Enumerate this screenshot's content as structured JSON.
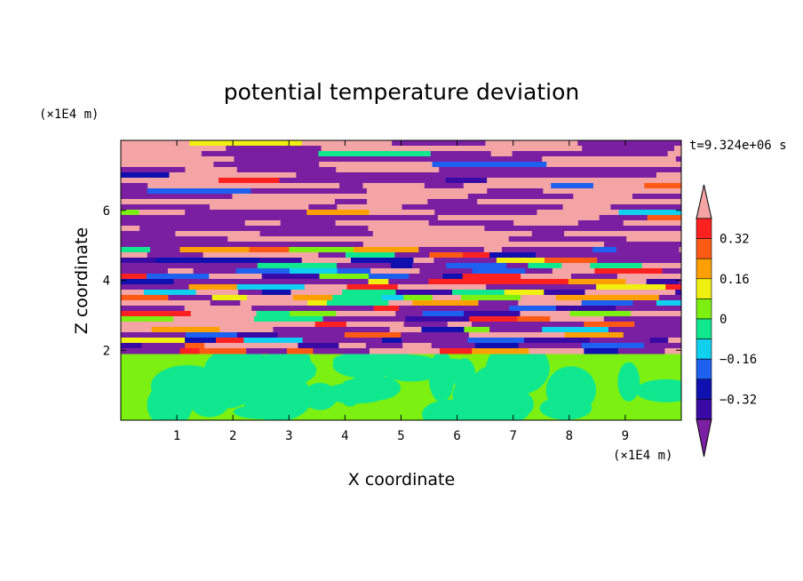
{
  "chart_data": {
    "type": "heatmap",
    "title": "potential temperature deviation",
    "xlabel": "X coordinate",
    "ylabel": "Z coordinate",
    "x_unit": "(×1E4 m)",
    "y_unit": "(×1E4 m)",
    "time_label": "t=9.324e+06 s",
    "xlim": [
      0,
      10
    ],
    "ylim": [
      0,
      8
    ],
    "x_ticks": [
      1,
      2,
      3,
      4,
      5,
      6,
      7,
      8,
      9
    ],
    "y_ticks": [
      2,
      4,
      6
    ],
    "colorbar": {
      "levels": [
        -0.4,
        -0.32,
        -0.24,
        -0.16,
        -0.08,
        0,
        0.08,
        0.16,
        0.24,
        0.32,
        0.4
      ],
      "labeled_ticks": [
        "0.32",
        "0.16",
        "0",
        "−0.16",
        "−0.32"
      ],
      "labeled_values": [
        0.32,
        0.16,
        0,
        -0.16,
        -0.32
      ],
      "colors": [
        "#7b1fa2",
        "#3a0aa6",
        "#1010b0",
        "#1e60f0",
        "#10d0f0",
        "#10e890",
        "#7cf010",
        "#f0f010",
        "#ffa000",
        "#ff5a14",
        "#ff2020",
        "#f4a4a4"
      ],
      "extend": "both"
    },
    "regions": [
      {
        "z_range": [
          0,
          1.95
        ],
        "description_values": [
          -0.08,
          0.08
        ],
        "dominant_value": 0.04
      },
      {
        "z_range": [
          1.95,
          5.0
        ],
        "description_values": [
          -0.4,
          0.4
        ],
        "dominant_value": 0
      },
      {
        "z_range": [
          5.0,
          8.0
        ],
        "description_values": [
          -0.4,
          0.4
        ],
        "dominant_value": 0.4
      }
    ],
    "grid": false
  }
}
